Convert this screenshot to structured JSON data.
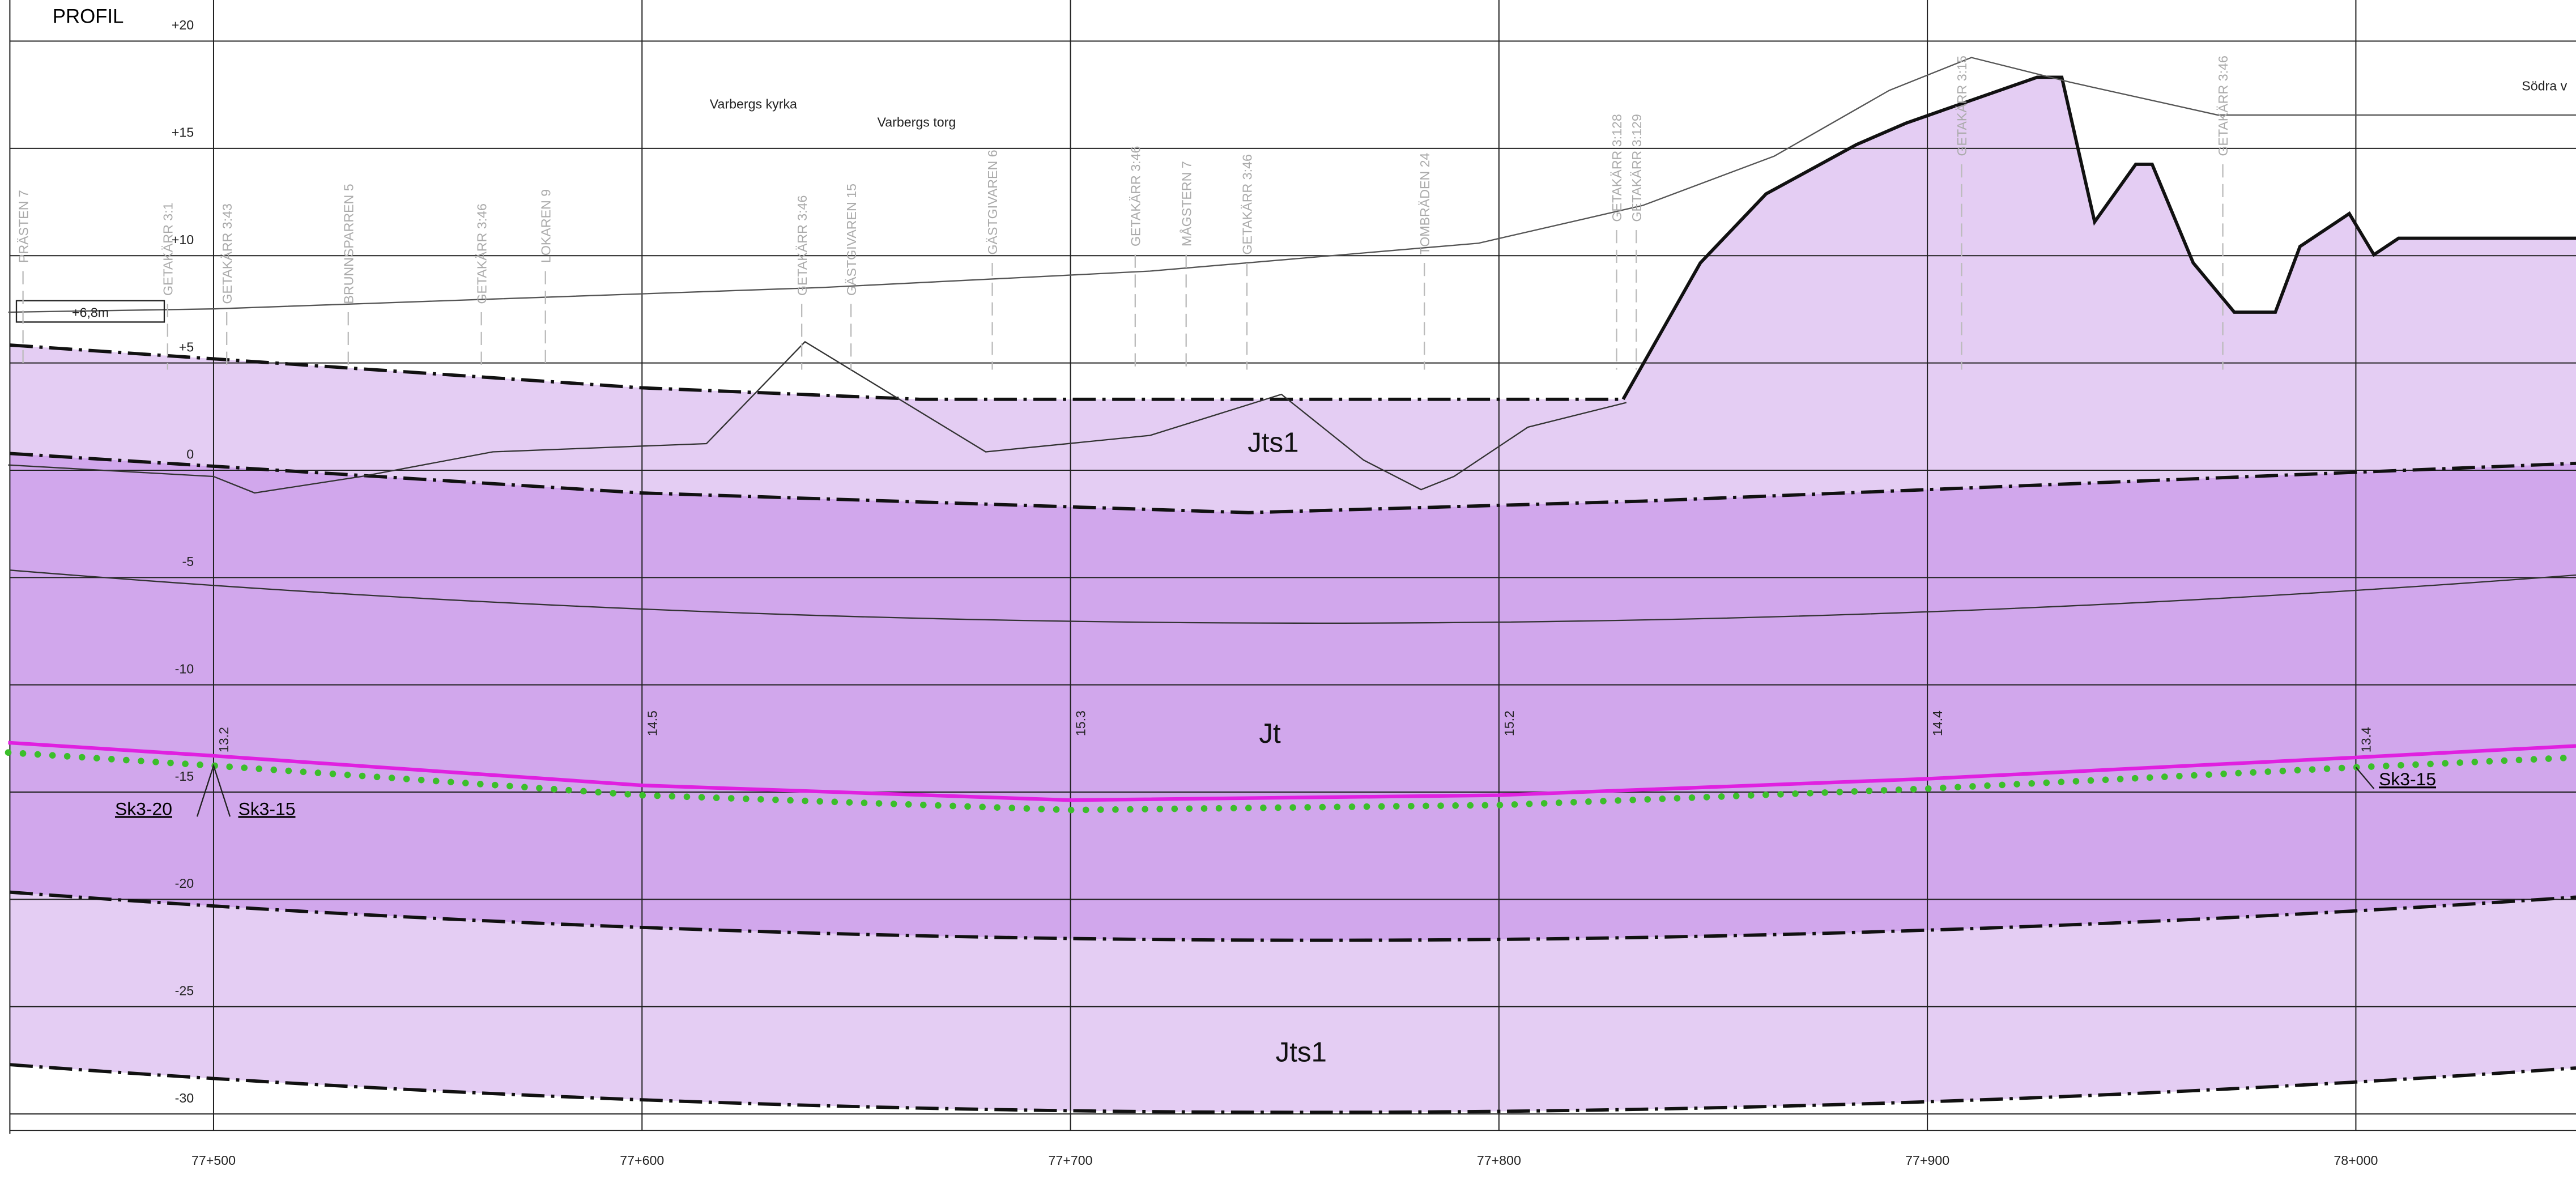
{
  "title": "PROFIL",
  "y_labels": [
    "+20",
    "+15",
    "+10",
    "+5",
    "0",
    "-5",
    "-10",
    "-15",
    "-20",
    "-25",
    "-30"
  ],
  "x_labels": [
    "77+500",
    "77+600",
    "77+700",
    "77+800",
    "77+900",
    "78+000"
  ],
  "places": [
    "Varbergs kyrka",
    "Varbergs torg",
    "Södra v"
  ],
  "layers": [
    "Jts1",
    "Jt",
    "Jts1"
  ],
  "depths": [
    "13.2",
    "14.5",
    "15.3",
    "15.2",
    "14.4",
    "13.4"
  ],
  "points": [
    "Sk3-20",
    "Sk3-15",
    "Sk3-15"
  ],
  "scale_note": "+6,8m",
  "properties": [
    "PRÄSTEN 7",
    "GETAKÄRR 3:1",
    "GETAKÄRR 3:43",
    "BRUNNSPARREN 5",
    "GETAKÄRR 3:46",
    "LOKAREN 9",
    "GETAKÄRR 3:46",
    "GÄSTGIVAREN 15",
    "GÄSTGIVAREN 6",
    "GETAKÄRR 3:46",
    "MÅGSTERN 7",
    "GETAKÄRR 3:46",
    "TOMBRÄDEN 24",
    "GETAKÄRR 3:128",
    "GETAKÄRR 3:129",
    "GETAKÄRR 3:15",
    "GETAKÄRR 3:46"
  ]
}
